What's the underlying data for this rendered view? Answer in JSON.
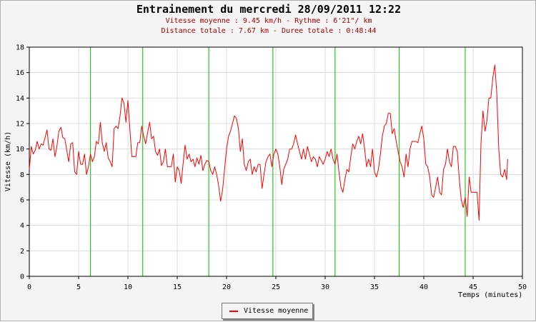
{
  "chart_data": {
    "type": "line",
    "title": "Entrainement du mercredi 28/09/2011 12:22",
    "subtitle_lines": [
      "Vitesse moyenne : 9.45 km/h - Rythme : 6'21\"/ km",
      "Distance totale : 7.67 km - Duree totale : 0:48:44"
    ],
    "xlabel": "Temps (minutes)",
    "ylabel": "Vitesse (km/h)",
    "xlim": [
      0,
      50
    ],
    "ylim": [
      0,
      18
    ],
    "x_ticks": [
      0,
      5,
      10,
      15,
      20,
      25,
      30,
      35,
      40,
      45,
      50
    ],
    "y_ticks": [
      0,
      2,
      4,
      6,
      8,
      10,
      12,
      14,
      16,
      18
    ],
    "grid": true,
    "legend": "bottom-center",
    "markers_x": [
      6.2,
      11.5,
      18.2,
      24.7,
      31.0,
      37.5,
      44.2
    ],
    "series": [
      {
        "name": "Vitesse moyenne",
        "color": "#ff0000",
        "points": [
          [
            0.0,
            8.4
          ],
          [
            0.2,
            10.2
          ],
          [
            0.4,
            9.6
          ],
          [
            0.6,
            9.9
          ],
          [
            0.8,
            10.6
          ],
          [
            1.0,
            10.0
          ],
          [
            1.2,
            10.4
          ],
          [
            1.4,
            10.3
          ],
          [
            1.6,
            10.9
          ],
          [
            1.8,
            11.5
          ],
          [
            2.0,
            10.0
          ],
          [
            2.2,
            9.9
          ],
          [
            2.4,
            10.8
          ],
          [
            2.6,
            9.4
          ],
          [
            2.8,
            10.2
          ],
          [
            3.0,
            11.4
          ],
          [
            3.2,
            11.7
          ],
          [
            3.4,
            10.9
          ],
          [
            3.6,
            10.8
          ],
          [
            3.8,
            9.9
          ],
          [
            4.0,
            9.0
          ],
          [
            4.2,
            10.4
          ],
          [
            4.4,
            10.5
          ],
          [
            4.6,
            8.2
          ],
          [
            4.8,
            8.0
          ],
          [
            5.0,
            9.8
          ],
          [
            5.2,
            8.8
          ],
          [
            5.4,
            8.8
          ],
          [
            5.6,
            9.6
          ],
          [
            5.8,
            8.0
          ],
          [
            6.0,
            8.6
          ],
          [
            6.2,
            9.6
          ],
          [
            6.4,
            9.0
          ],
          [
            6.6,
            9.4
          ],
          [
            6.8,
            10.6
          ],
          [
            7.0,
            10.4
          ],
          [
            7.2,
            12.1
          ],
          [
            7.4,
            10.5
          ],
          [
            7.6,
            9.8
          ],
          [
            7.8,
            10.5
          ],
          [
            8.0,
            9.3
          ],
          [
            8.2,
            9.0
          ],
          [
            8.4,
            8.6
          ],
          [
            8.6,
            11.6
          ],
          [
            8.8,
            11.8
          ],
          [
            9.0,
            11.6
          ],
          [
            9.2,
            12.6
          ],
          [
            9.4,
            14.0
          ],
          [
            9.6,
            13.6
          ],
          [
            9.8,
            12.1
          ],
          [
            10.0,
            13.8
          ],
          [
            10.2,
            11.5
          ],
          [
            10.4,
            9.4
          ],
          [
            10.6,
            9.4
          ],
          [
            10.8,
            9.4
          ],
          [
            11.0,
            10.5
          ],
          [
            11.2,
            10.5
          ],
          [
            11.4,
            11.8
          ],
          [
            11.6,
            11.0
          ],
          [
            11.8,
            10.4
          ],
          [
            12.0,
            11.3
          ],
          [
            12.2,
            12.1
          ],
          [
            12.4,
            10.8
          ],
          [
            12.6,
            11.0
          ],
          [
            12.8,
            9.8
          ],
          [
            13.0,
            9.5
          ],
          [
            13.2,
            10.0
          ],
          [
            13.4,
            8.7
          ],
          [
            13.6,
            9.0
          ],
          [
            13.8,
            10.0
          ],
          [
            14.0,
            8.6
          ],
          [
            14.2,
            8.6
          ],
          [
            14.4,
            8.6
          ],
          [
            14.6,
            9.6
          ],
          [
            14.8,
            7.4
          ],
          [
            15.0,
            8.6
          ],
          [
            15.2,
            8.3
          ],
          [
            15.4,
            7.3
          ],
          [
            15.6,
            8.9
          ],
          [
            15.8,
            10.3
          ],
          [
            16.0,
            9.2
          ],
          [
            16.2,
            9.6
          ],
          [
            16.4,
            9.0
          ],
          [
            16.6,
            9.2
          ],
          [
            16.8,
            8.6
          ],
          [
            17.0,
            9.3
          ],
          [
            17.2,
            8.8
          ],
          [
            17.4,
            9.5
          ],
          [
            17.6,
            8.3
          ],
          [
            17.8,
            8.8
          ],
          [
            18.0,
            9.1
          ],
          [
            18.2,
            9.0
          ],
          [
            18.4,
            8.3
          ],
          [
            18.6,
            8.0
          ],
          [
            18.8,
            8.6
          ],
          [
            19.0,
            8.0
          ],
          [
            19.2,
            7.1
          ],
          [
            19.4,
            5.9
          ],
          [
            19.6,
            6.8
          ],
          [
            19.8,
            8.4
          ],
          [
            20.0,
            10.0
          ],
          [
            20.2,
            11.0
          ],
          [
            20.4,
            11.4
          ],
          [
            20.6,
            12.0
          ],
          [
            20.8,
            12.6
          ],
          [
            21.0,
            12.4
          ],
          [
            21.2,
            11.6
          ],
          [
            21.4,
            9.8
          ],
          [
            21.6,
            10.8
          ],
          [
            21.8,
            8.8
          ],
          [
            22.0,
            8.3
          ],
          [
            22.2,
            9.0
          ],
          [
            22.4,
            9.2
          ],
          [
            22.6,
            8.0
          ],
          [
            22.8,
            8.6
          ],
          [
            23.0,
            8.2
          ],
          [
            23.2,
            8.8
          ],
          [
            23.4,
            8.8
          ],
          [
            23.6,
            6.9
          ],
          [
            23.8,
            8.0
          ],
          [
            24.0,
            9.0
          ],
          [
            24.2,
            9.4
          ],
          [
            24.4,
            9.6
          ],
          [
            24.6,
            8.6
          ],
          [
            24.8,
            9.6
          ],
          [
            25.0,
            10.0
          ],
          [
            25.2,
            9.6
          ],
          [
            25.4,
            8.6
          ],
          [
            25.6,
            7.2
          ],
          [
            25.8,
            8.4
          ],
          [
            26.0,
            8.8
          ],
          [
            26.2,
            9.2
          ],
          [
            26.4,
            10.0
          ],
          [
            26.6,
            10.0
          ],
          [
            26.8,
            10.4
          ],
          [
            27.0,
            11.1
          ],
          [
            27.2,
            10.4
          ],
          [
            27.4,
            9.8
          ],
          [
            27.6,
            9.2
          ],
          [
            27.8,
            10.0
          ],
          [
            28.0,
            9.2
          ],
          [
            28.2,
            10.2
          ],
          [
            28.4,
            9.6
          ],
          [
            28.6,
            9.0
          ],
          [
            28.8,
            9.4
          ],
          [
            29.0,
            9.2
          ],
          [
            29.2,
            8.6
          ],
          [
            29.4,
            9.4
          ],
          [
            29.6,
            9.1
          ],
          [
            29.8,
            8.8
          ],
          [
            30.0,
            9.2
          ],
          [
            30.2,
            9.8
          ],
          [
            30.4,
            9.4
          ],
          [
            30.6,
            10.0
          ],
          [
            30.8,
            9.2
          ],
          [
            31.0,
            8.8
          ],
          [
            31.2,
            9.6
          ],
          [
            31.4,
            8.2
          ],
          [
            31.6,
            7.0
          ],
          [
            31.8,
            6.6
          ],
          [
            32.0,
            7.6
          ],
          [
            32.2,
            8.4
          ],
          [
            32.4,
            8.2
          ],
          [
            32.6,
            9.4
          ],
          [
            32.8,
            10.4
          ],
          [
            33.0,
            10.0
          ],
          [
            33.2,
            10.6
          ],
          [
            33.4,
            11.0
          ],
          [
            33.6,
            10.4
          ],
          [
            33.8,
            11.2
          ],
          [
            34.0,
            10.0
          ],
          [
            34.2,
            8.6
          ],
          [
            34.4,
            9.2
          ],
          [
            34.6,
            8.6
          ],
          [
            34.8,
            10.0
          ],
          [
            35.0,
            8.2
          ],
          [
            35.2,
            7.8
          ],
          [
            35.4,
            8.4
          ],
          [
            35.6,
            9.6
          ],
          [
            35.8,
            11.0
          ],
          [
            36.0,
            11.8
          ],
          [
            36.2,
            12.0
          ],
          [
            36.4,
            12.8
          ],
          [
            36.6,
            12.8
          ],
          [
            36.8,
            11.2
          ],
          [
            37.0,
            11.6
          ],
          [
            37.2,
            10.6
          ],
          [
            37.4,
            9.8
          ],
          [
            37.6,
            9.0
          ],
          [
            37.8,
            8.6
          ],
          [
            38.0,
            7.8
          ],
          [
            38.2,
            9.6
          ],
          [
            38.4,
            8.6
          ],
          [
            38.6,
            10.0
          ],
          [
            38.8,
            10.6
          ],
          [
            39.0,
            10.6
          ],
          [
            39.2,
            10.6
          ],
          [
            39.4,
            10.5
          ],
          [
            39.6,
            11.2
          ],
          [
            39.8,
            11.8
          ],
          [
            40.0,
            10.8
          ],
          [
            40.2,
            8.8
          ],
          [
            40.4,
            8.6
          ],
          [
            40.6,
            7.8
          ],
          [
            40.8,
            6.4
          ],
          [
            41.0,
            6.2
          ],
          [
            41.2,
            7.0
          ],
          [
            41.4,
            7.8
          ],
          [
            41.6,
            6.6
          ],
          [
            41.8,
            6.4
          ],
          [
            42.0,
            8.4
          ],
          [
            42.2,
            8.8
          ],
          [
            42.4,
            10.0
          ],
          [
            42.6,
            9.0
          ],
          [
            42.8,
            8.6
          ],
          [
            43.0,
            10.2
          ],
          [
            43.2,
            10.2
          ],
          [
            43.4,
            9.8
          ],
          [
            43.6,
            7.6
          ],
          [
            43.8,
            6.0
          ],
          [
            44.0,
            5.4
          ],
          [
            44.2,
            6.2
          ],
          [
            44.4,
            4.7
          ],
          [
            44.6,
            7.8
          ],
          [
            44.8,
            6.6
          ],
          [
            45.0,
            6.6
          ],
          [
            45.2,
            6.6
          ],
          [
            45.4,
            6.6
          ],
          [
            45.6,
            4.4
          ],
          [
            45.8,
            10.4
          ],
          [
            46.0,
            13.0
          ],
          [
            46.2,
            11.4
          ],
          [
            46.4,
            12.2
          ],
          [
            46.6,
            14.0
          ],
          [
            46.8,
            14.0
          ],
          [
            47.0,
            15.6
          ],
          [
            47.2,
            16.6
          ],
          [
            47.4,
            14.4
          ],
          [
            47.6,
            10.0
          ],
          [
            47.8,
            8.0
          ],
          [
            48.0,
            7.8
          ],
          [
            48.2,
            8.4
          ],
          [
            48.4,
            7.6
          ],
          [
            48.5,
            9.2
          ]
        ]
      }
    ]
  }
}
